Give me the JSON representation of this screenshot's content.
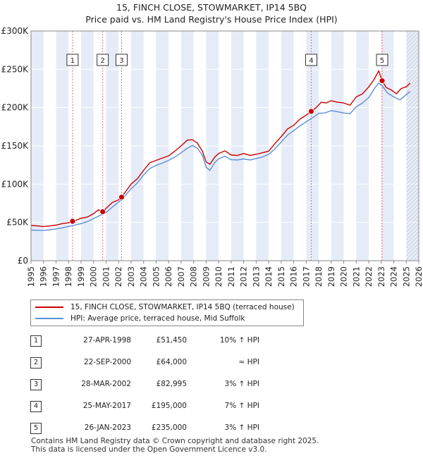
{
  "title": "15, FINCH CLOSE, STOWMARKET, IP14 5BQ",
  "subtitle": "Price paid vs. HM Land Registry's House Price Index (HPI)",
  "colors": {
    "property_line": "#cc0000",
    "hpi_line": "#5b8fd6",
    "band": "#e6ecf7",
    "grid": "#ffffff",
    "vline": "#e07070"
  },
  "chart_data": {
    "type": "line",
    "x_range": [
      1995,
      2026
    ],
    "ylim": [
      0,
      300000
    ],
    "y_ticks": [
      0,
      50000,
      100000,
      150000,
      200000,
      250000,
      300000
    ],
    "y_tick_labels": [
      "£0",
      "£50K",
      "£100K",
      "£150K",
      "£200K",
      "£250K",
      "£300K"
    ],
    "x_ticks": [
      1995,
      1996,
      1997,
      1998,
      1999,
      2000,
      2001,
      2002,
      2003,
      2004,
      2005,
      2006,
      2007,
      2008,
      2009,
      2010,
      2011,
      2012,
      2013,
      2014,
      2015,
      2016,
      2017,
      2018,
      2019,
      2020,
      2021,
      2022,
      2023,
      2024,
      2025,
      2026
    ],
    "x_tick_labels": [
      "1995",
      "1996",
      "1997",
      "1998",
      "1999",
      "2000",
      "2001",
      "2002",
      "2003",
      "2004",
      "2005",
      "2006",
      "2007",
      "2008",
      "2009",
      "2010",
      "2011",
      "2012",
      "2013",
      "2014",
      "2015",
      "2016",
      "2017",
      "2018",
      "2019",
      "2020",
      "2021",
      "2022",
      "2023",
      "2024",
      "2025",
      "2026"
    ],
    "hatched_from": 2025.0,
    "series": [
      {
        "name": "15, FINCH CLOSE, STOWMARKET, IP14 5BQ (terraced house)",
        "color": "#cc0000",
        "x": [
          1995.0,
          1995.5,
          1996.0,
          1996.5,
          1997.0,
          1997.5,
          1998.0,
          1998.32,
          1998.7,
          1999.0,
          1999.5,
          2000.0,
          2000.4,
          2000.73,
          2001.0,
          2001.5,
          2002.0,
          2002.24,
          2002.6,
          2003.0,
          2003.5,
          2004.0,
          2004.5,
          2005.0,
          2005.5,
          2006.0,
          2006.5,
          2007.0,
          2007.5,
          2007.9,
          2008.3,
          2008.7,
          2009.0,
          2009.3,
          2009.7,
          2010.0,
          2010.5,
          2011.0,
          2011.5,
          2012.0,
          2012.5,
          2013.0,
          2013.5,
          2014.0,
          2014.5,
          2015.0,
          2015.5,
          2016.0,
          2016.5,
          2017.0,
          2017.4,
          2017.8,
          2018.2,
          2018.6,
          2019.0,
          2019.5,
          2020.0,
          2020.5,
          2021.0,
          2021.5,
          2022.0,
          2022.4,
          2022.8,
          2023.07,
          2023.4,
          2023.8,
          2024.2,
          2024.6,
          2025.0,
          2025.3
        ],
        "y": [
          46000,
          45500,
          44500,
          45500,
          46500,
          48500,
          49500,
          51450,
          53500,
          55500,
          57000,
          61500,
          66500,
          64000,
          68500,
          76000,
          79500,
          82995,
          91000,
          100000,
          107000,
          118000,
          128000,
          131000,
          134000,
          137000,
          143000,
          150000,
          157500,
          158000,
          153500,
          143000,
          129000,
          126000,
          135500,
          140000,
          143500,
          138000,
          137500,
          140000,
          137500,
          139000,
          141000,
          143000,
          153000,
          162000,
          172000,
          177000,
          185000,
          190000,
          195000,
          200000,
          207000,
          206000,
          209000,
          207000,
          206000,
          203000,
          214000,
          218000,
          227000,
          236000,
          248000,
          235000,
          226000,
          223000,
          218000,
          225000,
          227000,
          232000
        ]
      },
      {
        "name": "HPI: Average price, terraced house, Mid Suffolk",
        "color": "#5b8fd6",
        "x": [
          1995.0,
          1995.5,
          1996.0,
          1996.5,
          1997.0,
          1997.5,
          1998.0,
          1998.5,
          1999.0,
          1999.5,
          2000.0,
          2000.5,
          2001.0,
          2001.5,
          2002.0,
          2002.5,
          2003.0,
          2003.5,
          2004.0,
          2004.5,
          2005.0,
          2005.5,
          2006.0,
          2006.5,
          2007.0,
          2007.5,
          2007.9,
          2008.3,
          2008.7,
          2009.0,
          2009.3,
          2009.7,
          2010.0,
          2010.5,
          2011.0,
          2011.5,
          2012.0,
          2012.5,
          2013.0,
          2013.5,
          2014.0,
          2014.5,
          2015.0,
          2015.5,
          2016.0,
          2016.5,
          2017.0,
          2017.5,
          2018.0,
          2018.5,
          2019.0,
          2019.5,
          2020.0,
          2020.5,
          2021.0,
          2021.5,
          2022.0,
          2022.5,
          2022.8,
          2023.1,
          2023.5,
          2024.0,
          2024.5,
          2025.0,
          2025.3
        ],
        "y": [
          40000,
          39800,
          39500,
          40500,
          41500,
          43000,
          44800,
          46500,
          48500,
          51000,
          55000,
          59000,
          63000,
          70000,
          76500,
          84500,
          94000,
          101500,
          112000,
          120500,
          124500,
          127500,
          131000,
          135500,
          141000,
          147000,
          150500,
          147000,
          137500,
          122000,
          118000,
          128500,
          133000,
          136500,
          132000,
          131500,
          133000,
          131500,
          133500,
          135500,
          139000,
          146000,
          155000,
          164000,
          170000,
          176000,
          181500,
          186500,
          192500,
          193000,
          196000,
          194500,
          193000,
          192000,
          201000,
          206000,
          213000,
          226000,
          232000,
          228000,
          219000,
          214000,
          210000,
          217000,
          221000
        ]
      }
    ],
    "markers": [
      {
        "num": "1",
        "x": 1998.32,
        "y": 51450
      },
      {
        "num": "2",
        "x": 2000.73,
        "y": 64000
      },
      {
        "num": "3",
        "x": 2002.24,
        "y": 82995
      },
      {
        "num": "4",
        "x": 2017.4,
        "y": 195000
      },
      {
        "num": "5",
        "x": 2023.07,
        "y": 235000
      }
    ]
  },
  "legend": {
    "property_label": "15, FINCH CLOSE, STOWMARKET, IP14 5BQ (terraced house)",
    "hpi_label": "HPI: Average price, terraced house, Mid Suffolk"
  },
  "sales": [
    {
      "num": "1",
      "date": "27-APR-1998",
      "price": "£51,450",
      "hpi": "10% ↑ HPI"
    },
    {
      "num": "2",
      "date": "22-SEP-2000",
      "price": "£64,000",
      "hpi": "≈ HPI"
    },
    {
      "num": "3",
      "date": "28-MAR-2002",
      "price": "£82,995",
      "hpi": "3% ↑ HPI"
    },
    {
      "num": "4",
      "date": "25-MAY-2017",
      "price": "£195,000",
      "hpi": "7% ↑ HPI"
    },
    {
      "num": "5",
      "date": "26-JAN-2023",
      "price": "£235,000",
      "hpi": "3% ↑ HPI"
    }
  ],
  "footer": {
    "line1": "Contains HM Land Registry data © Crown copyright and database right 2025.",
    "line2": "This data is licensed under the Open Government Licence v3.0."
  }
}
